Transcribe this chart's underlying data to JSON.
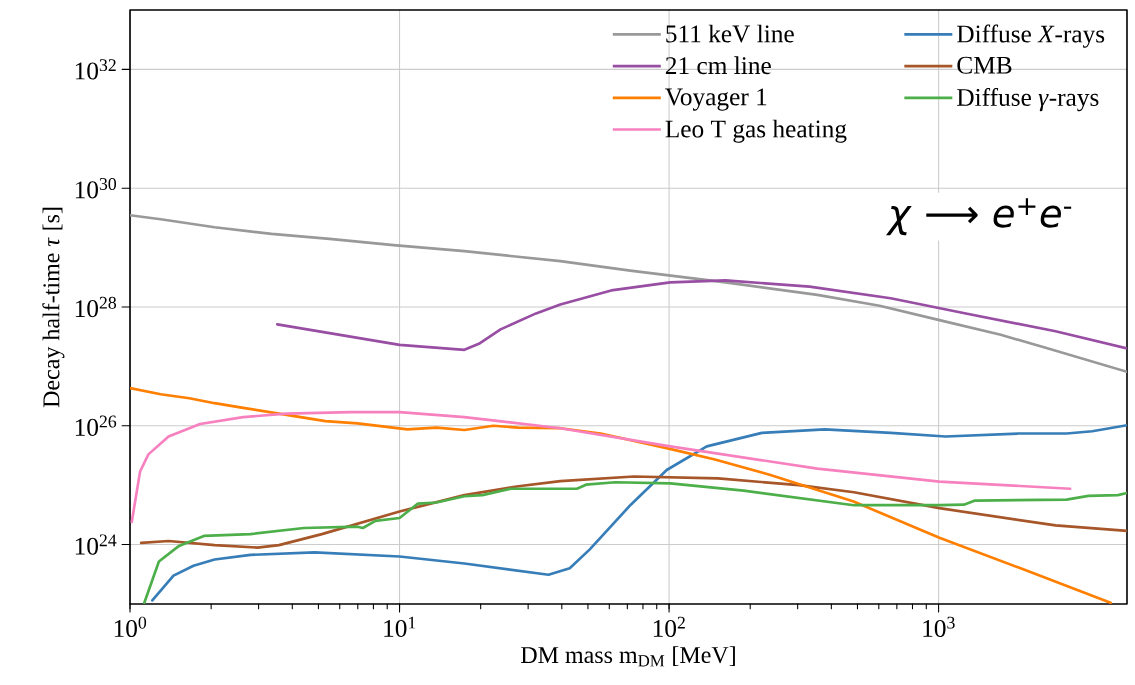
{
  "chart_data": {
    "type": "line",
    "xlabel": "DM mass m$_{DM}$ [MeV]",
    "ylabel": "Decay half-time *τ* [s]",
    "log": "xy",
    "grid": true,
    "legend": "top right",
    "xlim": [
      1,
      5000
    ],
    "ylim": [
      1e+23,
      1e+33
    ],
    "xticks": [
      {
        "value": 1,
        "label": "10$^{0}$"
      },
      {
        "value": 10,
        "label": "10$^{1}$"
      },
      {
        "value": 100,
        "label": "10$^{2}$"
      },
      {
        "value": 1000,
        "label": "10$^{3}$"
      }
    ],
    "yticks": [
      {
        "value": 1e+24,
        "label": "10$^{24}$"
      },
      {
        "value": 1e+26,
        "label": "10$^{26}$"
      },
      {
        "value": 1e+28,
        "label": "10$^{28}$"
      },
      {
        "value": 1e+30,
        "label": "10$^{30}$"
      },
      {
        "value": 1e+32,
        "label": "10$^{32}$"
      }
    ],
    "annotations": [
      "*χ* ⟶ *e*$^{+}$*e*$^{-}$"
    ],
    "series": [
      {
        "name": "511 keV line",
        "color": "#999999",
        "x": [
          1,
          1.3,
          2.06,
          3.35,
          5.5,
          9.5,
          17.4,
          39.5,
          71.8,
          162,
          355,
          604,
          1007,
          1700,
          2550,
          5000
        ],
        "values": [
          3.5e+29,
          3e+29,
          2.2e+29,
          1.7e+29,
          1.4e+29,
          1.1e+29,
          8.7e+28,
          5.9e+28,
          4.1e+28,
          2.6e+28,
          1.6e+28,
          1.05e+28,
          6e+27,
          3.4e+27,
          2e+27,
          8.1e+26
        ]
      },
      {
        "name": "21 cm line",
        "color": "#984ea3",
        "x": [
          3.52,
          10,
          17.4,
          19.7,
          23.7,
          32.1,
          39.5,
          61,
          101,
          162,
          332,
          664,
          1236,
          2716,
          5000
        ],
        "values": [
          5.1e+27,
          2.3e+27,
          1.9e+27,
          2.4e+27,
          4.2e+27,
          7.8e+27,
          1.1e+28,
          1.9e+28,
          2.6e+28,
          2.8e+28,
          2.2e+28,
          1.4e+28,
          7.9e+27,
          3.9e+27,
          2e+27
        ]
      },
      {
        "name": "Voyager 1",
        "color": "#ff7f00",
        "x": [
          1,
          1.3,
          1.66,
          2.06,
          2.63,
          3.57,
          5.31,
          6.98,
          10.7,
          13.7,
          17.4,
          22.3,
          27.6,
          39.5,
          55.7,
          97.9,
          148,
          236,
          484,
          1007,
          1982,
          4345
        ],
        "values": [
          4.3e+26,
          3.4e+26,
          2.9e+26,
          2.4e+26,
          2e+26,
          1.6e+26,
          1.2e+26,
          1.1e+26,
          8.7e+25,
          9.3e+25,
          8.5e+25,
          1e+26,
          9.3e+25,
          9.1e+25,
          7.4e+25,
          4.2e+25,
          2.7e+25,
          1.5e+25,
          5.3e+24,
          1.3e+24,
          4.1e+23,
          1.05e+23
        ]
      },
      {
        "name": "Leo T gas heating",
        "color": "#f781bf",
        "x": [
          1.015,
          1.09,
          1.17,
          1.39,
          1.82,
          2.63,
          3.8,
          6.58,
          10,
          17.4,
          39.5,
          101,
          355,
          1007,
          3077
        ],
        "values": [
          2.4e+24,
          1.7e+25,
          3.3e+25,
          6.6e+25,
          1.07e+26,
          1.4e+26,
          1.6e+26,
          1.7e+26,
          1.7e+26,
          1.4e+26,
          9.1e+25,
          4.5e+25,
          1.9e+25,
          1.15e+25,
          8.7e+24
        ]
      },
      {
        "name": "Diffuse *X*-rays",
        "color": "#377eb8",
        "x": [
          1.21,
          1.45,
          1.72,
          2.06,
          2.8,
          4.84,
          10,
          17.4,
          35.7,
          42.8,
          50.8,
          71.8,
          98,
          138,
          221,
          378,
          664,
          1061,
          1982,
          2985,
          3715,
          5000
        ],
        "values": [
          1.15e+23,
          3e+23,
          4.4e+23,
          5.6e+23,
          6.7e+23,
          7.4e+23,
          6.3e+23,
          4.8e+23,
          3.1e+23,
          4e+23,
          8.3e+23,
          4.6e+24,
          1.8e+25,
          4.5e+25,
          7.6e+25,
          8.7e+25,
          7.6e+25,
          6.6e+25,
          7.4e+25,
          7.4e+25,
          8.1e+25,
          1.02e+26
        ]
      },
      {
        "name": "CMB",
        "color": "#a65628",
        "x": [
          1.1,
          1.39,
          2.06,
          2.97,
          3.57,
          5.15,
          10,
          17.4,
          27.6,
          39.5,
          74,
          152,
          303,
          485,
          1007,
          2716,
          5000
        ],
        "values": [
          1.07e+24,
          1.15e+24,
          9.8e+23,
          8.9e+23,
          9.8e+23,
          1.5e+24,
          3.6e+24,
          6.8e+24,
          9.6e+24,
          1.17e+25,
          1.4e+25,
          1.3e+25,
          1e+25,
          7.6e+24,
          4.1e+24,
          2.1e+24,
          1.7e+24
        ]
      },
      {
        "name": "Diffuse *γ*-rays",
        "color": "#4daf4a",
        "x": [
          1.13,
          1.28,
          1.52,
          1.88,
          2.8,
          4.42,
          6.98,
          7.31,
          8.14,
          10,
          11.7,
          13.7,
          17.4,
          20.3,
          25.9,
          39.5,
          45.5,
          49.2,
          63.2,
          101,
          189,
          485,
          1007,
          1242,
          1365,
          2985,
          3597,
          4624,
          5000
        ],
        "values": [
          1.05e+23,
          5.2e+23,
          9.5e+23,
          1.4e+24,
          1.5e+24,
          1.9e+24,
          2e+24,
          1.9e+24,
          2.5e+24,
          2.8e+24,
          4.9e+24,
          5.1e+24,
          6.5e+24,
          6.8e+24,
          8.7e+24,
          8.7e+24,
          8.7e+24,
          1.02e+25,
          1.12e+25,
          1.07e+25,
          8.1e+24,
          4.6e+24,
          4.6e+24,
          4.7e+24,
          5.5e+24,
          5.7e+24,
          6.6e+24,
          6.8e+24,
          7.4e+24
        ]
      }
    ]
  }
}
